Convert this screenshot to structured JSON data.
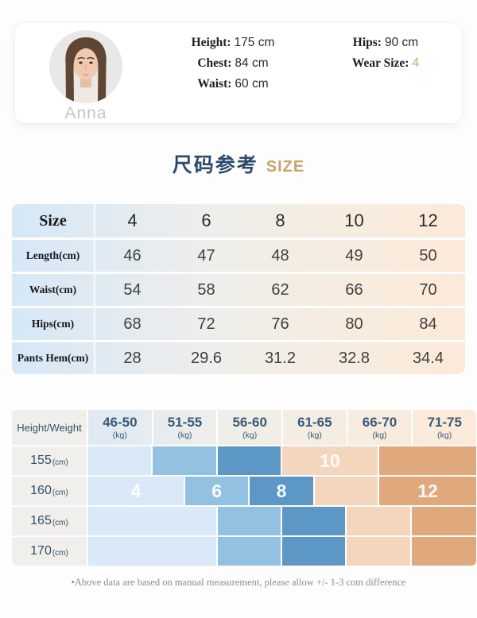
{
  "model_card": {
    "name": "Anna",
    "left": [
      {
        "label": "Height:",
        "value": "175 cm"
      },
      {
        "label": "Chest:",
        "value": "84 cm"
      },
      {
        "label": "Waist:",
        "value": "60 cm"
      }
    ],
    "right": [
      {
        "label": "Hips:",
        "value": "90 cm"
      },
      {
        "label": "Wear Size:",
        "value": "4",
        "highlight": true
      }
    ]
  },
  "section_title": {
    "cn": "尺码参考",
    "en": "SIZE"
  },
  "size_table": {
    "header_label": "Size",
    "header_values": [
      "4",
      "6",
      "8",
      "10",
      "12"
    ],
    "rows": [
      {
        "label": "Length(cm)",
        "values": [
          "46",
          "47",
          "48",
          "49",
          "50"
        ]
      },
      {
        "label": "Waist(cm)",
        "values": [
          "54",
          "58",
          "62",
          "66",
          "70"
        ]
      },
      {
        "label": "Hips(cm)",
        "values": [
          "68",
          "72",
          "76",
          "80",
          "84"
        ]
      },
      {
        "label": "Pants Hem(cm)",
        "values": [
          "28",
          "29.6",
          "31.2",
          "32.8",
          "34.4"
        ]
      }
    ]
  },
  "matrix": {
    "corner_label": "Height/Weight",
    "columns": [
      {
        "range": "46-50",
        "unit": "(kg)"
      },
      {
        "range": "51-55",
        "unit": "(kg)"
      },
      {
        "range": "56-60",
        "unit": "(kg)"
      },
      {
        "range": "61-65",
        "unit": "(kg)"
      },
      {
        "range": "66-70",
        "unit": "(kg)"
      },
      {
        "range": "71-75",
        "unit": "(kg)"
      }
    ],
    "rows": [
      {
        "label": "155",
        "unit": "(cm)",
        "blocks": [
          {
            "color": "blue_light",
            "start": 0,
            "span": 1,
            "text": ""
          },
          {
            "color": "blue_mid",
            "start": 1,
            "span": 1,
            "text": ""
          },
          {
            "color": "blue_dark",
            "start": 2,
            "span": 1,
            "text": ""
          },
          {
            "color": "peach_light",
            "start": 3,
            "span": 1.5,
            "text": "10"
          },
          {
            "color": "peach_dark",
            "start": 4.5,
            "span": 1.5,
            "text": ""
          }
        ]
      },
      {
        "label": "160",
        "unit": "(cm)",
        "blocks": [
          {
            "color": "blue_light",
            "start": 0,
            "span": 1.5,
            "text": "4"
          },
          {
            "color": "blue_mid",
            "start": 1.5,
            "span": 1,
            "text": "6"
          },
          {
            "color": "blue_dark",
            "start": 2.5,
            "span": 1,
            "text": "8"
          },
          {
            "color": "peach_light",
            "start": 3.5,
            "span": 1,
            "text": ""
          },
          {
            "color": "peach_dark",
            "start": 4.5,
            "span": 1.5,
            "text": "12"
          }
        ]
      },
      {
        "label": "165",
        "unit": "(cm)",
        "blocks": [
          {
            "color": "blue_light",
            "start": 0,
            "span": 2,
            "text": ""
          },
          {
            "color": "blue_mid",
            "start": 2,
            "span": 1,
            "text": ""
          },
          {
            "color": "blue_dark",
            "start": 3,
            "span": 1,
            "text": ""
          },
          {
            "color": "peach_light",
            "start": 4,
            "span": 1,
            "text": ""
          },
          {
            "color": "peach_dark",
            "start": 5,
            "span": 1,
            "text": ""
          }
        ]
      },
      {
        "label": "170",
        "unit": "(cm)",
        "blocks": [
          {
            "color": "blue_light",
            "start": 0,
            "span": 2,
            "text": ""
          },
          {
            "color": "blue_mid",
            "start": 2,
            "span": 1,
            "text": ""
          },
          {
            "color": "blue_dark",
            "start": 3,
            "span": 1,
            "text": ""
          },
          {
            "color": "peach_light",
            "start": 4,
            "span": 1,
            "text": ""
          },
          {
            "color": "peach_dark",
            "start": 5,
            "span": 1,
            "text": ""
          }
        ]
      }
    ]
  },
  "footnote": "•Above data are based on manual measurement, please allow +/- 1-3 com difference",
  "colors": {
    "blue_light": "#d9e9f7",
    "blue_mid": "#93c1e1",
    "blue_dark": "#5d97c5",
    "peach_light": "#f3d6bc",
    "peach_dark": "#dfa97c",
    "title_cn": "#2d4a6d",
    "gold": "#cfa45c",
    "slate": "#33506b"
  }
}
